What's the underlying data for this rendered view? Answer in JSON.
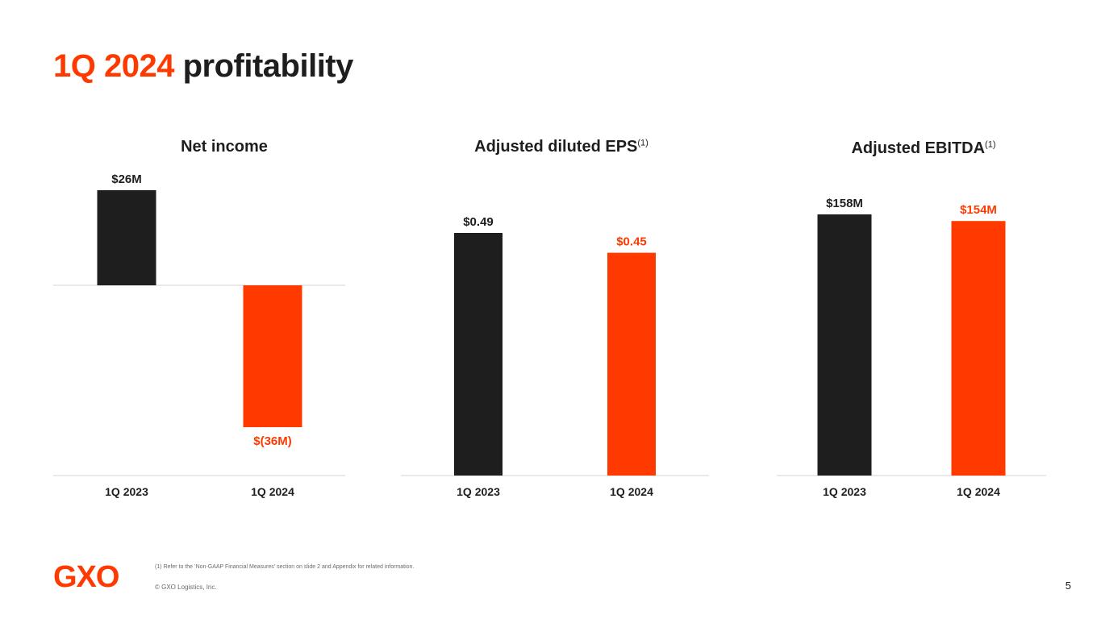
{
  "slide": {
    "title_accent": "1Q 2024",
    "title_rest": "profitability",
    "footnote": "(1) Refer to the ‘Non-GAAP Financial Measures’ section on slide 2 and Appendix for related information.",
    "copyright": "© GXO Logistics, Inc.",
    "page_number": "5",
    "logo_text": "GXO"
  },
  "colors": {
    "accent": "#ff3a00",
    "dark": "#1e1e1e",
    "axis": "#e2e2e2"
  },
  "chart_data": [
    {
      "type": "bar",
      "title": "Net income",
      "superscript": "",
      "categories": [
        "1Q 2023",
        "1Q 2024"
      ],
      "values": [
        26,
        -36
      ],
      "labels": [
        "$26M",
        "$(36M)"
      ],
      "units": "$M",
      "ylim": [
        -36,
        26
      ]
    },
    {
      "type": "bar",
      "title": "Adjusted diluted EPS",
      "superscript": "(1)",
      "categories": [
        "1Q 2023",
        "1Q 2024"
      ],
      "values": [
        0.49,
        0.45
      ],
      "labels": [
        "$0.49",
        "$0.45"
      ],
      "units": "$",
      "ylim": [
        0,
        0.49
      ]
    },
    {
      "type": "bar",
      "title": "Adjusted EBITDA",
      "superscript": "(1)",
      "categories": [
        "1Q 2023",
        "1Q 2024"
      ],
      "values": [
        158,
        154
      ],
      "labels": [
        "$158M",
        "$154M"
      ],
      "units": "$M",
      "ylim": [
        0,
        158
      ]
    }
  ]
}
